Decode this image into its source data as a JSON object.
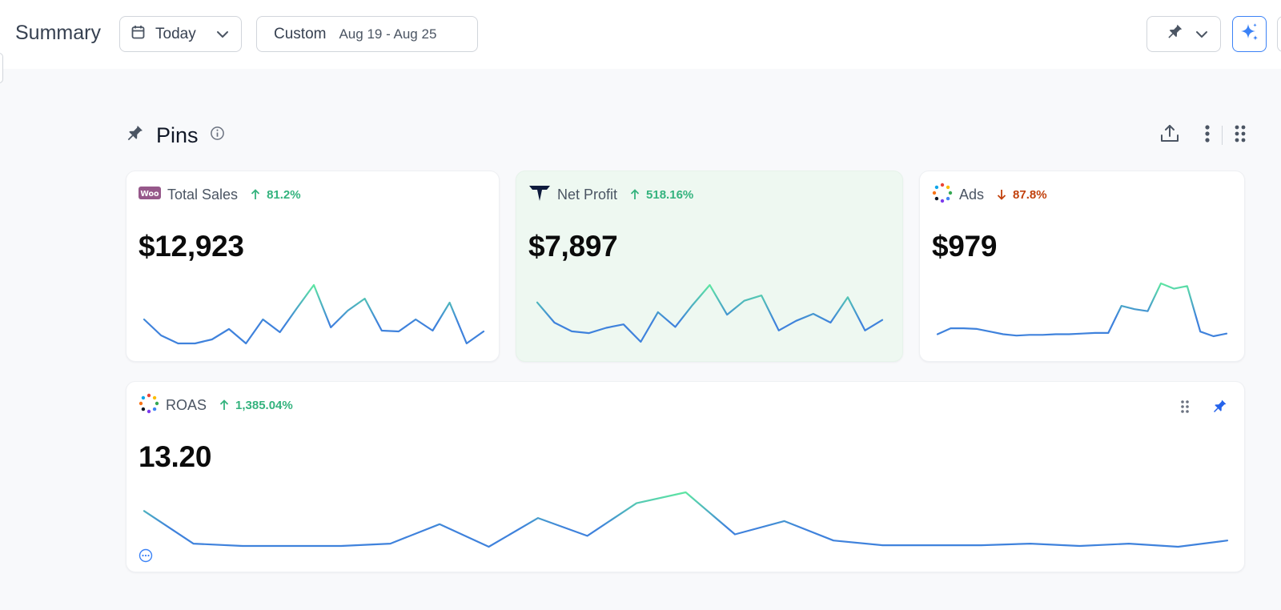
{
  "header": {
    "title": "Summary",
    "today_label": "Today",
    "custom_label": "Custom",
    "date_range": "Aug 19 - Aug 25"
  },
  "pins": {
    "title": "Pins"
  },
  "colors": {
    "line_start": "#3f82dc",
    "line_end": "#5ee6a2",
    "positive": "#34b37e",
    "negative": "#c2410c",
    "accent": "#3b82f6"
  },
  "cards": [
    {
      "name": "Total Sales",
      "icon": "woocommerce-logo",
      "delta": "81.2%",
      "delta_direction": "up",
      "value": "$12,923",
      "trend": [
        30,
        10,
        0,
        0,
        5,
        18,
        0,
        30,
        14,
        44,
        73,
        20,
        41,
        56,
        16,
        15,
        30,
        16,
        51,
        0,
        15
      ]
    },
    {
      "name": "Net Profit",
      "icon": "triple-whale-logo",
      "delta": "518.16%",
      "delta_direction": "up",
      "value": "$7,897",
      "trend": [
        58,
        35,
        25,
        23,
        29,
        33,
        13,
        47,
        30,
        55,
        78,
        44,
        60,
        66,
        26,
        37,
        45,
        35,
        64,
        26,
        38
      ]
    },
    {
      "name": "Ads",
      "icon": "ads-spinner-logo",
      "delta": "87.8%",
      "delta_direction": "down",
      "value": "$979",
      "trend": [
        3,
        12,
        12,
        11,
        7,
        3,
        1,
        2,
        2,
        3,
        3,
        4,
        5,
        5,
        46,
        41,
        38,
        80,
        72,
        76,
        7,
        0,
        4
      ]
    },
    {
      "name": "ROAS",
      "icon": "ads-spinner-logo",
      "delta": "1,385.04%",
      "delta_direction": "up",
      "value": "13.20",
      "trend": [
        46,
        4,
        1,
        1,
        1,
        4,
        29,
        0,
        37,
        14,
        56,
        70,
        16,
        33,
        8,
        2,
        2,
        2,
        4,
        1,
        4,
        0,
        8
      ]
    }
  ]
}
